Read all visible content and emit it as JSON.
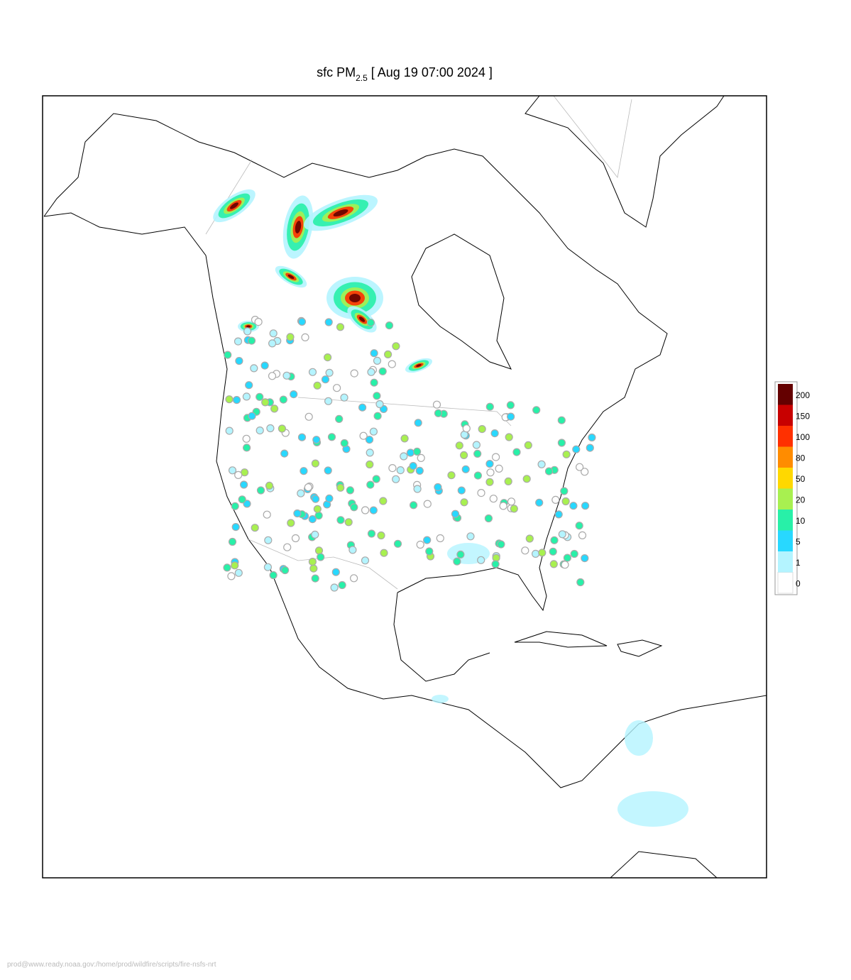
{
  "header": {
    "title_prefix": "sfc PM",
    "title_subscript": "2.5",
    "title_suffix": "[ Aug 19 07:00 2024 ]"
  },
  "legend": {
    "levels": [
      0,
      1,
      5,
      10,
      20,
      50,
      80,
      100,
      150,
      200
    ],
    "colors": [
      "#ffffff",
      "#b4f4ff",
      "#28d8ff",
      "#28f0a8",
      "#a8f050",
      "#ffd800",
      "#ff8c00",
      "#ff3000",
      "#c80000",
      "#640000"
    ]
  },
  "footer": {
    "text": "prod@www.ready.noaa.gov:/home/prod/wildfire/scripts/fire-nsfs-nrt"
  }
}
